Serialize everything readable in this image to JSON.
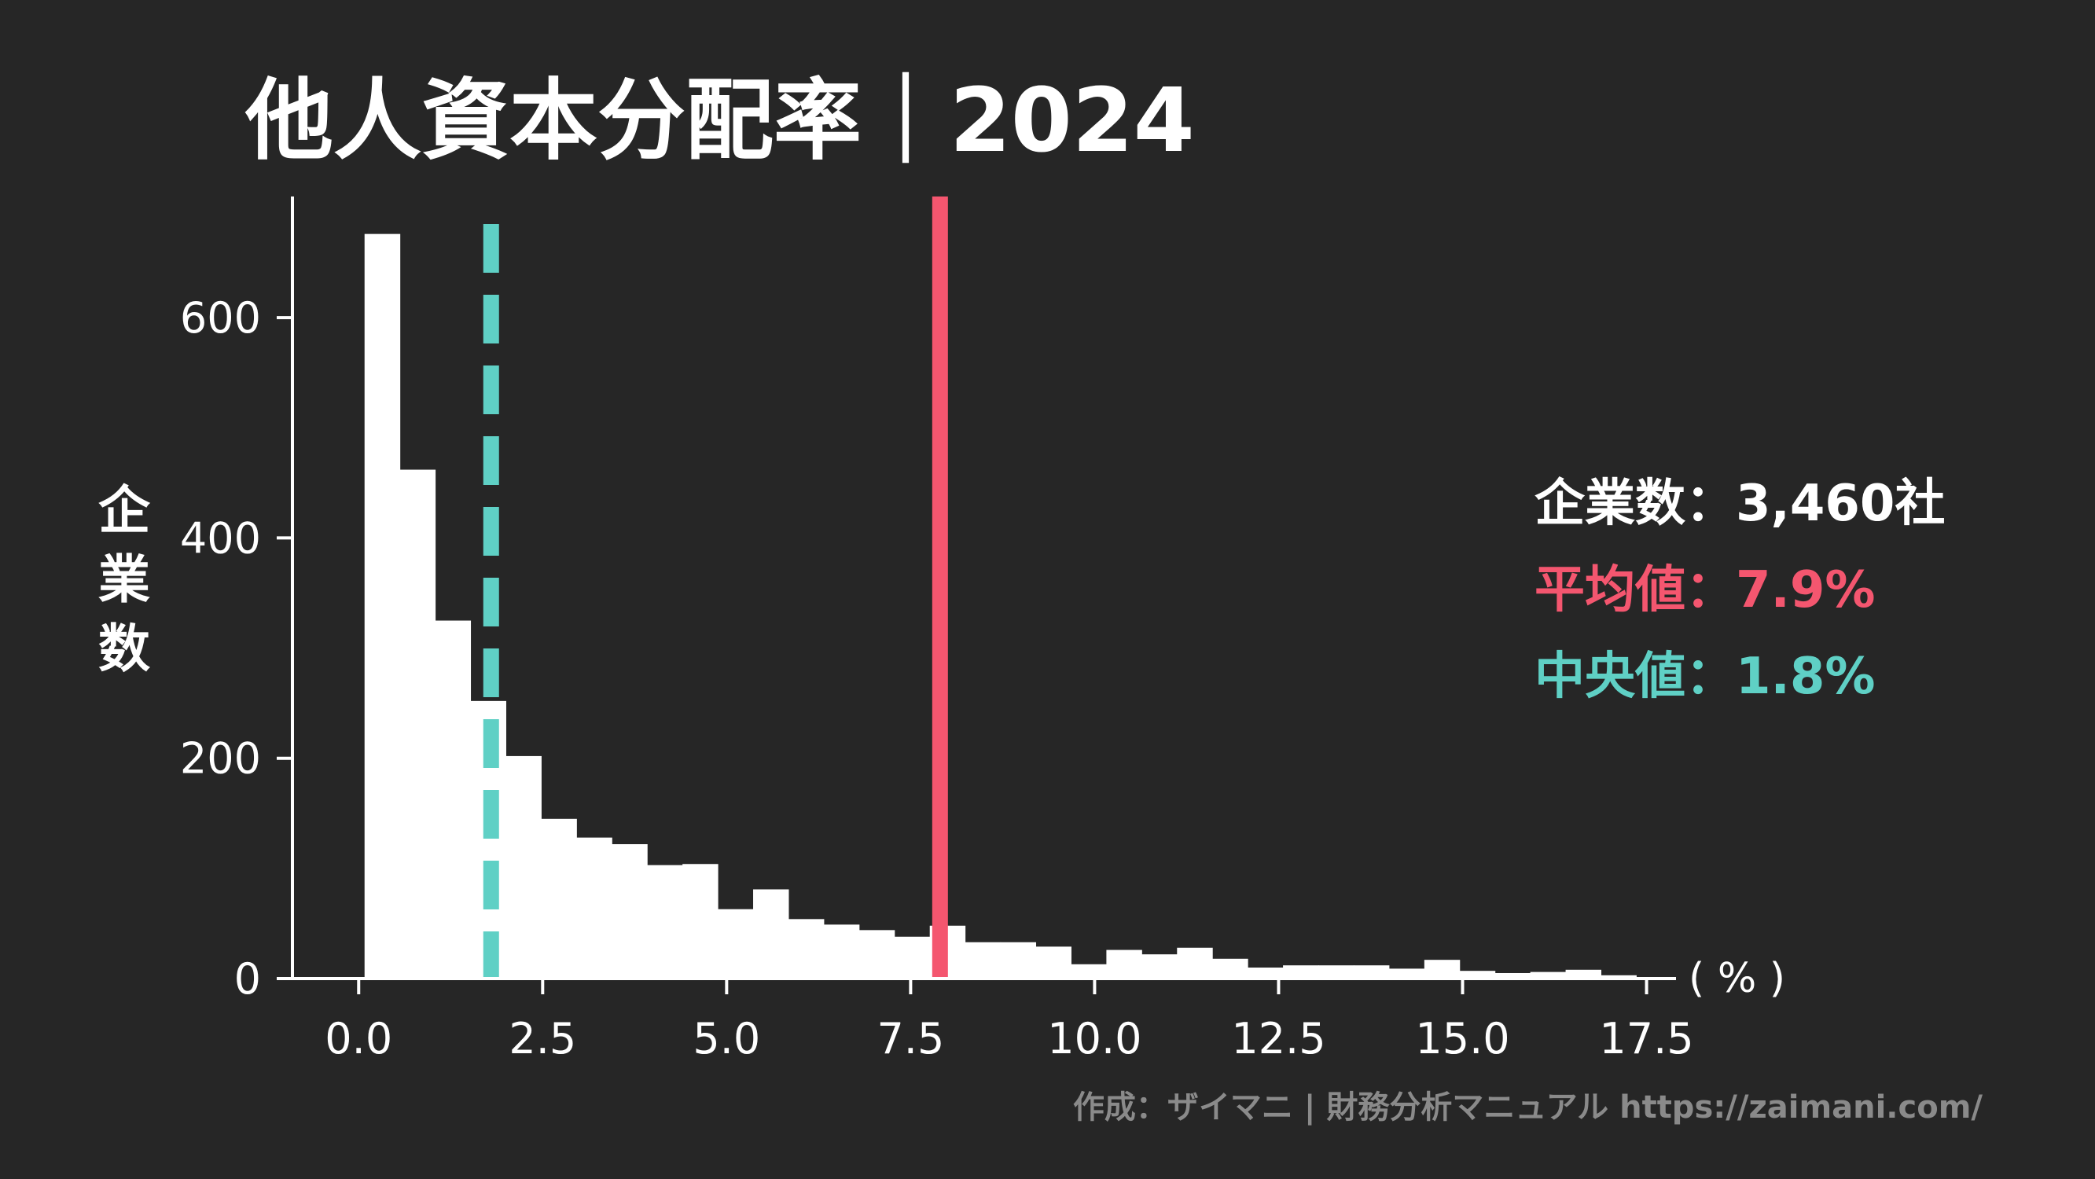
{
  "title": "他人資本分配率｜2024",
  "stats": {
    "count_label": "企業数",
    "count_value": "3,460社",
    "mean_label": "平均値",
    "mean_value": "7.9%",
    "median_label": "中央値",
    "median_value": "1.8%",
    "separator": "："
  },
  "credit": "作成：ザイマニ | 財務分析マニュアル https://zaimani.com/",
  "colors": {
    "background": "#262626",
    "bars": "#ffffff",
    "mean_line": "#f4566f",
    "median_line": "#5fd0c5",
    "text": "#ffffff",
    "credit": "#8a8a8a"
  },
  "chart_data": {
    "type": "bar",
    "subtype": "histogram",
    "ylabel": "企業数",
    "x_unit_label": "( % )",
    "xlim": [
      -0.9,
      17.9
    ],
    "ylim": [
      0,
      710
    ],
    "xticks": [
      0.0,
      2.5,
      5.0,
      7.5,
      10.0,
      12.5,
      15.0,
      17.5
    ],
    "xtick_labels": [
      "0.0",
      "2.5",
      "5.0",
      "7.5",
      "10.0",
      "12.5",
      "15.0",
      "17.5"
    ],
    "yticks": [
      0,
      200,
      400,
      600
    ],
    "ytick_labels": [
      "0",
      "200",
      "400",
      "600"
    ],
    "bin_width": 0.48,
    "bin_start": 0.08,
    "values": [
      676,
      462,
      325,
      252,
      202,
      145,
      128,
      122,
      103,
      104,
      63,
      81,
      54,
      49,
      44,
      38,
      48,
      33,
      33,
      29,
      13,
      26,
      22,
      28,
      18,
      10,
      12,
      12,
      12,
      9,
      17,
      7,
      5,
      6,
      8,
      3
    ],
    "mean_line_x": 7.9,
    "median_line_x": 1.8,
    "grid": false,
    "legend": "none"
  }
}
